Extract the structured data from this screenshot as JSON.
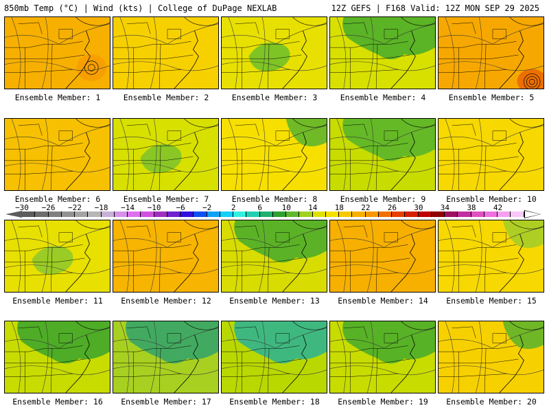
{
  "header": {
    "left_title": "850mb Temp (°C) | Wind (kts) | College of DuPage NEXLAB",
    "right_title": "12Z GEFS | F168 Valid: 12Z MON SEP 29 2025"
  },
  "members": [
    {
      "label": "Ensemble Member: 1",
      "bg": "#f7b000",
      "blobs": [
        {
          "c": "#f79400",
          "type": "ring"
        }
      ]
    },
    {
      "label": "Ensemble Member: 2",
      "bg": "#f7d000",
      "blobs": []
    },
    {
      "label": "Ensemble Member: 3",
      "bg": "#e8e000",
      "blobs": [
        {
          "c": "#6cbe2c",
          "type": "center"
        }
      ]
    },
    {
      "label": "Ensemble Member: 4",
      "bg": "#d8e000",
      "blobs": [
        {
          "c": "#3ca830",
          "type": "north"
        }
      ]
    },
    {
      "label": "Ensemble Member: 5",
      "bg": "#f7a800",
      "blobs": [
        {
          "c": "#e86000",
          "type": "storm"
        }
      ]
    },
    {
      "label": "Ensemble Member: 6",
      "bg": "#f7c000",
      "blobs": []
    },
    {
      "label": "Ensemble Member: 7",
      "bg": "#d8e000",
      "blobs": [
        {
          "c": "#7cc22c",
          "type": "center"
        }
      ]
    },
    {
      "label": "Ensemble Member: 8",
      "bg": "#f7e000",
      "blobs": [
        {
          "c": "#4cb030",
          "type": "ne"
        }
      ]
    },
    {
      "label": "Ensemble Member: 9",
      "bg": "#c8dc00",
      "blobs": [
        {
          "c": "#4cb030",
          "type": "north"
        }
      ]
    },
    {
      "label": "Ensemble Member: 10",
      "bg": "#f7d800",
      "blobs": []
    },
    {
      "label": "Ensemble Member: 11",
      "bg": "#e8e000",
      "blobs": [
        {
          "c": "#8cc82c",
          "type": "center"
        }
      ]
    },
    {
      "label": "Ensemble Member: 12",
      "bg": "#f7b400",
      "blobs": []
    },
    {
      "label": "Ensemble Member: 13",
      "bg": "#d8dc00",
      "blobs": [
        {
          "c": "#3ca830",
          "type": "north"
        }
      ]
    },
    {
      "label": "Ensemble Member: 14",
      "bg": "#f7b000",
      "blobs": []
    },
    {
      "label": "Ensemble Member: 15",
      "bg": "#f7d800",
      "blobs": [
        {
          "c": "#9ccc2c",
          "type": "ne"
        }
      ]
    },
    {
      "label": "Ensemble Member: 16",
      "bg": "#c8dc00",
      "blobs": [
        {
          "c": "#30a030",
          "type": "north"
        }
      ]
    },
    {
      "label": "Ensemble Member: 17",
      "bg": "#a8d020",
      "blobs": [
        {
          "c": "#28a070",
          "type": "north"
        }
      ]
    },
    {
      "label": "Ensemble Member: 18",
      "bg": "#b8d800",
      "blobs": [
        {
          "c": "#20b0a0",
          "type": "north"
        }
      ]
    },
    {
      "label": "Ensemble Member: 19",
      "bg": "#c8dc00",
      "blobs": [
        {
          "c": "#3ca830",
          "type": "north"
        }
      ]
    },
    {
      "label": "Ensemble Member: 20",
      "bg": "#f7d000",
      "blobs": [
        {
          "c": "#4cb030",
          "type": "ne"
        }
      ]
    }
  ],
  "colorbar": {
    "labels": [
      "−30",
      "−26",
      "−22",
      "−18",
      "−14",
      "−10",
      "−6",
      "−2",
      "2",
      "6",
      "10",
      "14",
      "18",
      "22",
      "26",
      "30",
      "34",
      "38",
      "42"
    ],
    "colors": [
      "#5c5c5c",
      "#6e6e6e",
      "#808080",
      "#929292",
      "#a4a4a4",
      "#b6b6b6",
      "#c8b0d8",
      "#d890e8",
      "#e070f0",
      "#d050e0",
      "#a030c0",
      "#7020d0",
      "#3010e0",
      "#1050f0",
      "#10a0f8",
      "#10d0f8",
      "#30f0e0",
      "#20d0b0",
      "#20b070",
      "#30a030",
      "#60b830",
      "#a0d020",
      "#e0e000",
      "#f7e000",
      "#f7c800",
      "#f7b000",
      "#f79800",
      "#f07000",
      "#e84000",
      "#d82000",
      "#c00000",
      "#900000",
      "#a01060",
      "#c030a0",
      "#e050c0",
      "#f070e0",
      "#f7a0f0",
      "#f8c8f8"
    ]
  }
}
